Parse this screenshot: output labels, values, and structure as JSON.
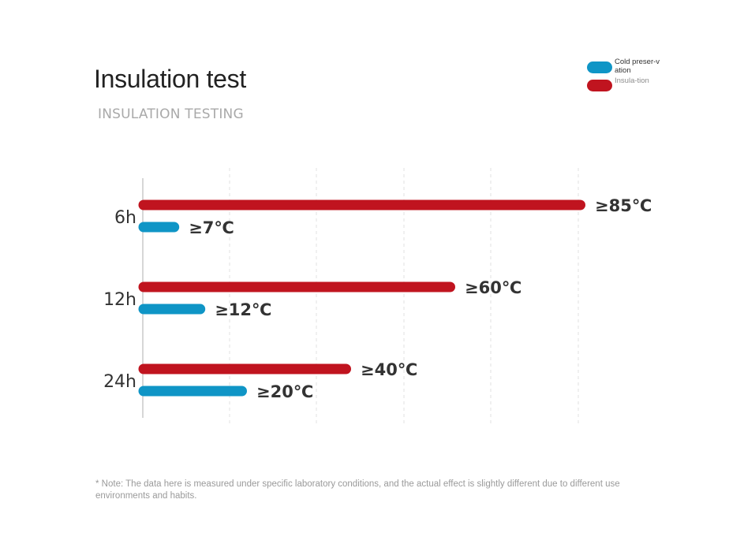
{
  "header": {
    "title": "Insulation test",
    "subtitle": "INSULATION TESTING"
  },
  "legend": {
    "items": [
      {
        "label": "Cold preser-vation",
        "color": "#0f95c6"
      },
      {
        "label": "Insula-tion",
        "color": "#c0141f"
      }
    ]
  },
  "chart_data": {
    "type": "bar",
    "orientation": "horizontal",
    "categories": [
      "6h",
      "12h",
      "24h"
    ],
    "series": [
      {
        "name": "Insula-tion",
        "color": "#c0141f",
        "values": [
          85,
          60,
          40
        ],
        "labels": [
          "≥85℃",
          "≥60℃",
          "≥40℃"
        ]
      },
      {
        "name": "Cold preser-vation",
        "color": "#0f95c6",
        "values": [
          7,
          12,
          20
        ],
        "labels": [
          "≥7℃",
          "≥12℃",
          "≥20℃"
        ]
      }
    ],
    "grid": "vertical-dashed",
    "legend_position": "top-right"
  },
  "footnote": "* Note: The data here is measured under specific laboratory conditions, and the actual effect is slightly different due to different use environments and habits."
}
